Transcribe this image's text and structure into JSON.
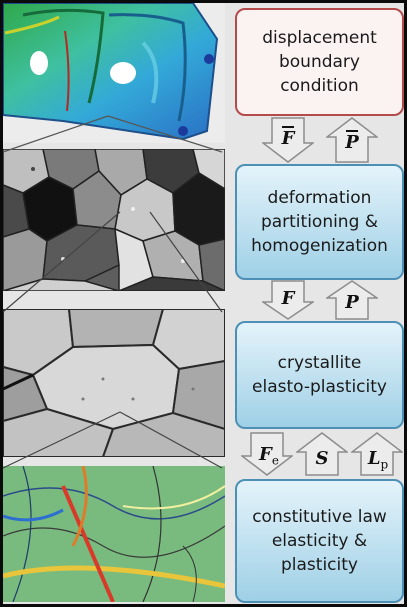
{
  "boxes": {
    "displacement": "displacement\nboundary\ncondition",
    "deformation": "deformation\npartitioning &\nhomogenization",
    "crystallite": "crystallite\nelasto-plasticity",
    "constitutive": "constitutive law\nelasticity &\nplasticity"
  },
  "arrows": {
    "level1_down": "F",
    "level1_up": "P",
    "level2_down": "F",
    "level2_up": "P",
    "level3_left": "F",
    "level3_left_sub": "e",
    "level3_mid": "S",
    "level3_right": "L",
    "level3_right_sub": "p"
  },
  "colors": {
    "box_red_border": "#b44a4a",
    "box_blue_border": "#4d90b6",
    "arrow_fill": "#ececec",
    "arrow_stroke": "#8c8c8c"
  }
}
